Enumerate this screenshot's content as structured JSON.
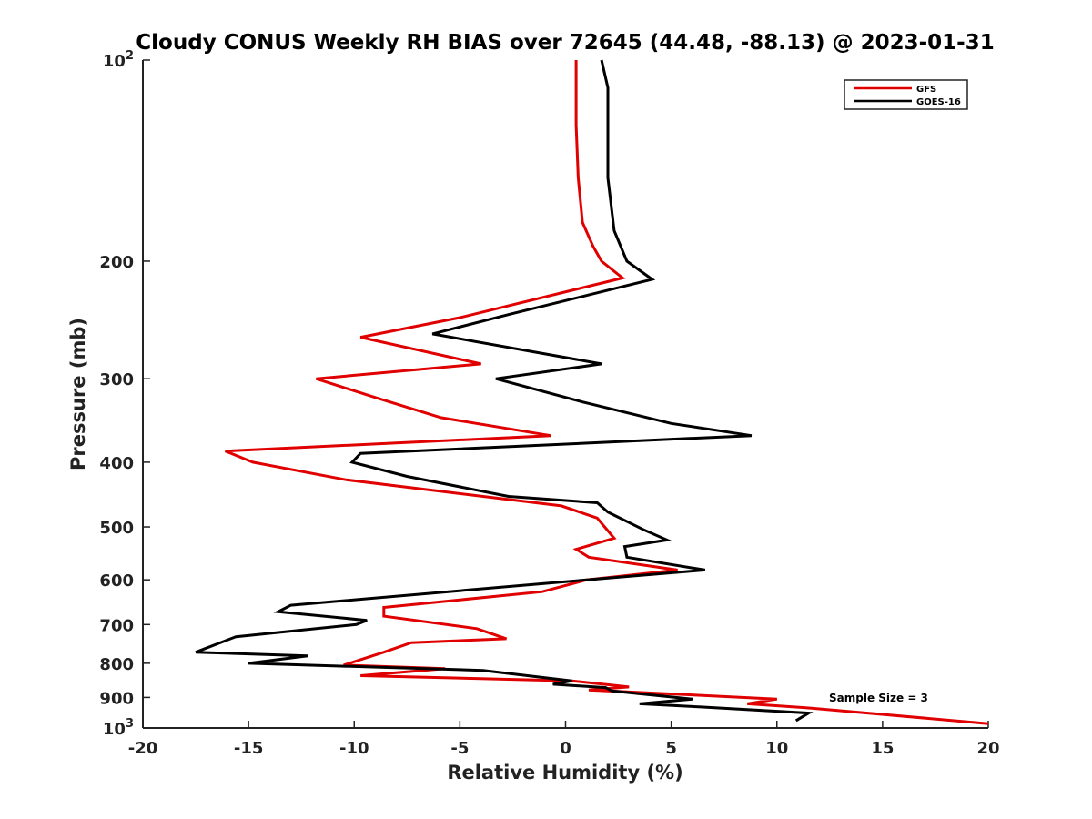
{
  "chart_data": {
    "type": "line",
    "title": "Cloudy CONUS Weekly RH BIAS over 72645 (44.48, -88.13) @ 2023-01-31",
    "xlabel": "Relative Humidity (%)",
    "ylabel": "Pressure (mb)",
    "xlim": [
      -20,
      20
    ],
    "ylim": [
      100,
      1000
    ],
    "y_scale": "log",
    "y_reversed": true,
    "grid": false,
    "legend_position": "top-right",
    "x_ticks": [
      "-20",
      "-15",
      "-10",
      "-5",
      "0",
      "5",
      "10",
      "15",
      "20"
    ],
    "y_ticks": [
      {
        "value": 100,
        "label": "10",
        "sup": "2"
      },
      {
        "value": 200,
        "label": "200",
        "sup": ""
      },
      {
        "value": 300,
        "label": "300",
        "sup": ""
      },
      {
        "value": 400,
        "label": "400",
        "sup": ""
      },
      {
        "value": 500,
        "label": "500",
        "sup": ""
      },
      {
        "value": 600,
        "label": "600",
        "sup": ""
      },
      {
        "value": 700,
        "label": "700",
        "sup": ""
      },
      {
        "value": 800,
        "label": "800",
        "sup": ""
      },
      {
        "value": 900,
        "label": "900",
        "sup": ""
      },
      {
        "value": 1000,
        "label": "10",
        "sup": "3"
      }
    ],
    "series": [
      {
        "name": "GFS",
        "color": "#e00000",
        "points": [
          [
            0.5,
            100
          ],
          [
            0.5,
            125
          ],
          [
            0.6,
            150
          ],
          [
            0.8,
            175
          ],
          [
            1.3,
            190
          ],
          [
            1.7,
            200
          ],
          [
            2.7,
            212
          ],
          [
            -5.0,
            243
          ],
          [
            -9.7,
            260
          ],
          [
            -4.0,
            285
          ],
          [
            -11.8,
            300
          ],
          [
            -9.0,
            320
          ],
          [
            -5.9,
            343
          ],
          [
            -0.7,
            365
          ],
          [
            -16.1,
            385
          ],
          [
            -14.8,
            400
          ],
          [
            -10.4,
            425
          ],
          [
            -0.2,
            465
          ],
          [
            1.5,
            485
          ],
          [
            2.3,
            520
          ],
          [
            0.5,
            540
          ],
          [
            1.1,
            555
          ],
          [
            5.3,
            580
          ],
          [
            1.0,
            600
          ],
          [
            -1.1,
            625
          ],
          [
            -8.6,
            660
          ],
          [
            -8.6,
            680
          ],
          [
            -4.2,
            710
          ],
          [
            -2.8,
            735
          ],
          [
            -7.3,
            745
          ],
          [
            -8.6,
            770
          ],
          [
            -10.5,
            805
          ],
          [
            -5.7,
            815
          ],
          [
            -9.7,
            835
          ],
          [
            0.3,
            850
          ],
          [
            3.0,
            868
          ],
          [
            1.1,
            877
          ],
          [
            10.0,
            905
          ],
          [
            8.6,
            920
          ],
          [
            11.3,
            932
          ],
          [
            20.0,
            985
          ]
        ]
      },
      {
        "name": "GOES-16",
        "color": "#000000",
        "points": [
          [
            1.7,
            100
          ],
          [
            2.0,
            110
          ],
          [
            2.0,
            150
          ],
          [
            2.3,
            180
          ],
          [
            2.9,
            200
          ],
          [
            4.1,
            213
          ],
          [
            -2.6,
            240
          ],
          [
            -6.3,
            257
          ],
          [
            1.7,
            285
          ],
          [
            -3.3,
            300
          ],
          [
            0.8,
            325
          ],
          [
            5.0,
            350
          ],
          [
            8.8,
            365
          ],
          [
            -9.7,
            388
          ],
          [
            -10.1,
            400
          ],
          [
            -7.5,
            420
          ],
          [
            -2.7,
            450
          ],
          [
            1.5,
            460
          ],
          [
            2.0,
            475
          ],
          [
            3.7,
            505
          ],
          [
            4.8,
            523
          ],
          [
            2.8,
            535
          ],
          [
            2.9,
            555
          ],
          [
            6.6,
            580
          ],
          [
            1.0,
            600
          ],
          [
            -13.0,
            655
          ],
          [
            -13.6,
            670
          ],
          [
            -9.4,
            690
          ],
          [
            -9.9,
            700
          ],
          [
            -15.6,
            730
          ],
          [
            -17.5,
            770
          ],
          [
            -12.2,
            780
          ],
          [
            -15.0,
            800
          ],
          [
            -3.9,
            820
          ],
          [
            0.3,
            850
          ],
          [
            -0.6,
            860
          ],
          [
            1.9,
            870
          ],
          [
            2.2,
            880
          ],
          [
            6.0,
            905
          ],
          [
            3.5,
            920
          ],
          [
            6.4,
            930
          ],
          [
            11.5,
            950
          ],
          [
            10.9,
            975
          ]
        ]
      }
    ],
    "annotations": [
      "Sample Size = 3"
    ]
  }
}
